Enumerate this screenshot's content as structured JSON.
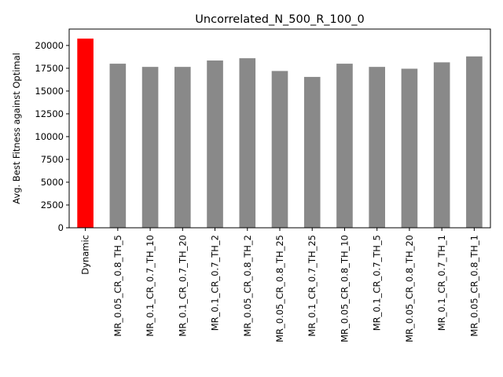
{
  "chart_data": {
    "type": "bar",
    "title": "Uncorrelated_N_500_R_100_0",
    "xlabel": "",
    "ylabel": "Avg. Best Fitness against Optimal",
    "ylim": [
      0,
      21800
    ],
    "yticks": [
      0,
      2500,
      5000,
      7500,
      10000,
      12500,
      15000,
      17500,
      20000
    ],
    "categories": [
      "Dynamic",
      "MR_0.05_CR_0.8_TH_5",
      "MR_0.1_CR_0.7_TH_10",
      "MR_0.1_CR_0.7_TH_20",
      "MR_0.1_CR_0.7_TH_2",
      "MR_0.05_CR_0.8_TH_2",
      "MR_0.05_CR_0.8_TH_25",
      "MR_0.1_CR_0.7_TH_25",
      "MR_0.05_CR_0.8_TH_10",
      "MR_0.1_CR_0.7_TH_5",
      "MR_0.05_CR_0.8_TH_20",
      "MR_0.1_CR_0.7_TH_1",
      "MR_0.05_CR_0.8_TH_1"
    ],
    "values": [
      20750,
      18000,
      17650,
      17650,
      18350,
      18600,
      17200,
      16550,
      18000,
      17650,
      17450,
      18150,
      18800
    ],
    "colors": [
      "#ff0000",
      "#898989",
      "#898989",
      "#898989",
      "#898989",
      "#898989",
      "#898989",
      "#898989",
      "#898989",
      "#898989",
      "#898989",
      "#898989",
      "#898989"
    ],
    "grid": false,
    "legend": "none"
  }
}
